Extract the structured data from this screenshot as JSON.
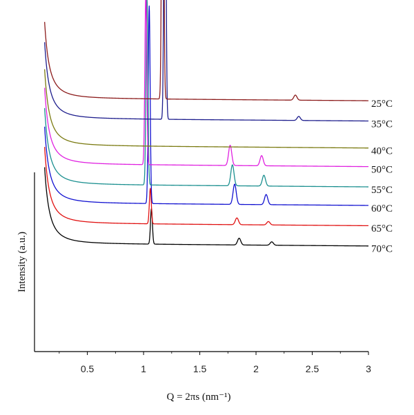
{
  "chart_data": {
    "type": "line",
    "xlabel": "Q = 2πs (nm⁻¹)",
    "ylabel": "Intensity (a.u.)",
    "xlim": [
      0.03,
      3.0
    ],
    "x_ticks": [
      0.5,
      1,
      1.5,
      2,
      2.5,
      3
    ],
    "x_tick_labels": [
      "0.5",
      "1",
      "1.5",
      "2",
      "2.5",
      "3"
    ],
    "y_ticks_shown": false,
    "grid": false,
    "stacked_offset": true,
    "series": [
      {
        "name": "25°C",
        "color": "#8b1a1a",
        "baseline": 0.75,
        "peaks": [
          {
            "q": 1.17,
            "height": 1.23
          },
          {
            "q": 2.35,
            "height": 0.015
          }
        ]
      },
      {
        "name": "35°C",
        "color": "#1c1c8c",
        "baseline": 0.69,
        "peaks": [
          {
            "q": 1.19,
            "height": 1.1
          },
          {
            "q": 2.38,
            "height": 0.012
          }
        ]
      },
      {
        "name": "40°C",
        "color": "#7a7a10",
        "baseline": 0.61,
        "peaks": []
      },
      {
        "name": "50°C",
        "color": "#e020e0",
        "baseline": 0.555,
        "peaks": [
          {
            "q": 1.02,
            "height": 0.505
          },
          {
            "q": 1.77,
            "height": 0.06
          },
          {
            "q": 2.05,
            "height": 0.03
          }
        ]
      },
      {
        "name": "55°C",
        "color": "#1a8f8f",
        "baseline": 0.495,
        "peaks": [
          {
            "q": 1.03,
            "height": 0.555
          },
          {
            "q": 1.79,
            "height": 0.062
          },
          {
            "q": 2.07,
            "height": 0.032
          }
        ]
      },
      {
        "name": "60°C",
        "color": "#1010d0",
        "baseline": 0.44,
        "peaks": [
          {
            "q": 1.05,
            "height": 0.585
          },
          {
            "q": 1.81,
            "height": 0.06
          },
          {
            "q": 2.09,
            "height": 0.03
          }
        ]
      },
      {
        "name": "65°C",
        "color": "#e01010",
        "baseline": 0.38,
        "peaks": [
          {
            "q": 1.06,
            "height": 0.105
          },
          {
            "q": 1.83,
            "height": 0.02
          },
          {
            "q": 2.11,
            "height": 0.01
          }
        ]
      },
      {
        "name": "70°C",
        "color": "#000000",
        "baseline": 0.32,
        "peaks": [
          {
            "q": 1.07,
            "height": 0.105
          },
          {
            "q": 1.85,
            "height": 0.02
          },
          {
            "q": 2.14,
            "height": 0.01
          }
        ]
      }
    ]
  }
}
